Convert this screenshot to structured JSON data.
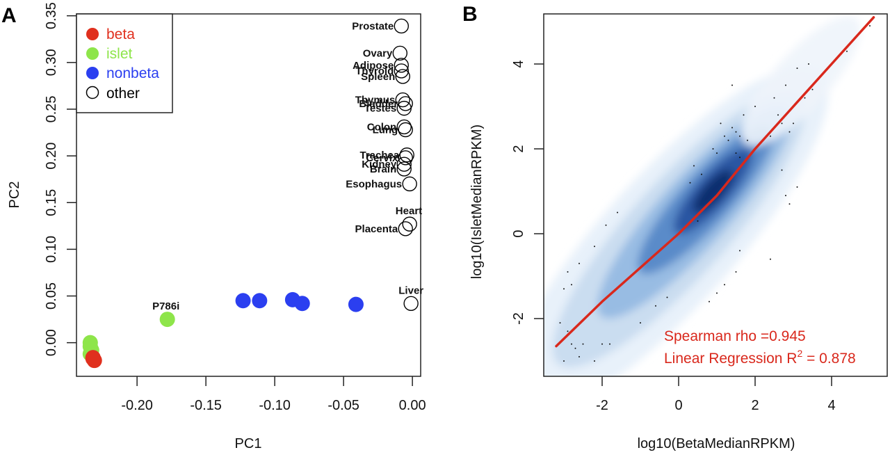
{
  "chart_data": [
    {
      "panel": "A",
      "type": "scatter",
      "title": "",
      "xlabel": "PC1",
      "ylabel": "PC2",
      "xlim": [
        -0.244,
        0.006
      ],
      "ylim": [
        -0.036,
        0.352
      ],
      "xticks": [
        "-0.20",
        "-0.15",
        "-0.10",
        "-0.05",
        "0.00"
      ],
      "xtick_values": [
        -0.2,
        -0.15,
        -0.1,
        -0.05,
        0.0
      ],
      "yticks": [
        "0.00",
        "0.05",
        "0.10",
        "0.15",
        "0.20",
        "0.25",
        "0.30",
        "0.35"
      ],
      "ytick_values": [
        0.0,
        0.05,
        0.1,
        0.15,
        0.2,
        0.25,
        0.3,
        0.35
      ],
      "grid": false,
      "legend": {
        "placement": "top-left",
        "entries": [
          {
            "label": "beta",
            "color": "#e0301e",
            "filled": true
          },
          {
            "label": "islet",
            "color": "#8ee54a",
            "filled": true
          },
          {
            "label": "nonbeta",
            "color": "#2b3ff0",
            "filled": true
          },
          {
            "label": "other",
            "color": "#000000",
            "filled": false
          }
        ]
      },
      "series": [
        {
          "name": "islet",
          "color": "#8ee54a",
          "points": [
            {
              "x": -0.234,
              "y": 0.0
            },
            {
              "x": -0.234,
              "y": -0.004
            },
            {
              "x": -0.233,
              "y": -0.008
            },
            {
              "x": -0.234,
              "y": -0.012
            },
            {
              "x": -0.178,
              "y": 0.025,
              "label": "P786i"
            }
          ]
        },
        {
          "name": "beta",
          "color": "#e0301e",
          "points": [
            {
              "x": -0.232,
              "y": -0.016
            },
            {
              "x": -0.231,
              "y": -0.019
            },
            {
              "x": -0.232,
              "y": -0.017
            }
          ]
        },
        {
          "name": "nonbeta",
          "color": "#2b3ff0",
          "points": [
            {
              "x": -0.123,
              "y": 0.045
            },
            {
              "x": -0.111,
              "y": 0.045
            },
            {
              "x": -0.087,
              "y": 0.046
            },
            {
              "x": -0.08,
              "y": 0.042
            },
            {
              "x": -0.041,
              "y": 0.041
            }
          ]
        },
        {
          "name": "other",
          "color": "#000000",
          "points": [
            {
              "x": -0.008,
              "y": 0.339,
              "label": "Prostate"
            },
            {
              "x": -0.009,
              "y": 0.31,
              "label": "Ovary"
            },
            {
              "x": -0.008,
              "y": 0.297,
              "label": "Adipose"
            },
            {
              "x": -0.008,
              "y": 0.291,
              "label": "Thyroid"
            },
            {
              "x": -0.007,
              "y": 0.285,
              "label": "Spleen"
            },
            {
              "x": -0.007,
              "y": 0.26,
              "label": "Thymus"
            },
            {
              "x": -0.005,
              "y": 0.256,
              "label": "Bladder"
            },
            {
              "x": -0.006,
              "y": 0.251,
              "label": "Testes"
            },
            {
              "x": -0.006,
              "y": 0.231,
              "label": "Colon"
            },
            {
              "x": -0.005,
              "y": 0.228,
              "label": "Lung"
            },
            {
              "x": -0.004,
              "y": 0.201,
              "label": "Trachea"
            },
            {
              "x": -0.005,
              "y": 0.198,
              "label": "Cervix"
            },
            {
              "x": -0.006,
              "y": 0.191,
              "label": "Kidney"
            },
            {
              "x": -0.006,
              "y": 0.186,
              "label": "Brain"
            },
            {
              "x": -0.002,
              "y": 0.17,
              "label": "Esophagus"
            },
            {
              "x": -0.002,
              "y": 0.127,
              "label": "Heart"
            },
            {
              "x": -0.005,
              "y": 0.122,
              "label": "Placenta"
            },
            {
              "x": -0.001,
              "y": 0.042,
              "label": "Liver"
            }
          ]
        }
      ]
    },
    {
      "panel": "B",
      "type": "heatmap",
      "subtype": "smoothScatter density with regression line",
      "title": "",
      "xlabel": "log10(BetaMedianRPKM)",
      "ylabel": "log10(IsletMedianRPKM)",
      "xlim": [
        -3.5,
        5.5
      ],
      "ylim": [
        -3.35,
        5.2
      ],
      "xticks": [
        "-2",
        "0",
        "2",
        "4"
      ],
      "xtick_values": [
        -2,
        0,
        2,
        4
      ],
      "yticks": [
        "-2",
        "0",
        "2",
        "4"
      ],
      "ytick_values": [
        -2,
        0,
        2,
        4
      ],
      "grid": false,
      "density_color": "#1a3f8f",
      "line_color": "#d9281c",
      "fit_line": [
        {
          "x": -3.2,
          "y": -2.65
        },
        {
          "x": -2.0,
          "y": -1.6
        },
        {
          "x": -1.0,
          "y": -0.8
        },
        {
          "x": 0.0,
          "y": 0.0
        },
        {
          "x": 1.0,
          "y": 0.9
        },
        {
          "x": 2.0,
          "y": 2.0
        },
        {
          "x": 3.0,
          "y": 3.0
        },
        {
          "x": 4.0,
          "y": 4.0
        },
        {
          "x": 5.1,
          "y": 5.1
        }
      ],
      "density_peak": {
        "x": 0.9,
        "y": 1.0
      },
      "outliers": [
        [
          5.0,
          4.9
        ],
        [
          3.4,
          4.0
        ],
        [
          4.4,
          4.3
        ],
        [
          3.1,
          3.9
        ],
        [
          2.8,
          3.5
        ],
        [
          3.5,
          3.4
        ],
        [
          3.3,
          3.2
        ],
        [
          2.5,
          3.2
        ],
        [
          1.4,
          3.5
        ],
        [
          2.0,
          3.0
        ],
        [
          1.7,
          2.8
        ],
        [
          1.1,
          2.6
        ],
        [
          1.4,
          2.5
        ],
        [
          1.5,
          2.4
        ],
        [
          1.2,
          2.3
        ],
        [
          1.6,
          2.3
        ],
        [
          1.3,
          2.2
        ],
        [
          1.8,
          2.2
        ],
        [
          0.9,
          2.0
        ],
        [
          1.0,
          1.9
        ],
        [
          1.5,
          1.9
        ],
        [
          1.6,
          1.8
        ],
        [
          0.4,
          1.6
        ],
        [
          0.6,
          1.4
        ],
        [
          0.3,
          1.2
        ],
        [
          2.6,
          2.8
        ],
        [
          2.7,
          2.6
        ],
        [
          3.0,
          2.6
        ],
        [
          2.9,
          2.4
        ],
        [
          2.4,
          2.3
        ],
        [
          2.7,
          1.5
        ],
        [
          2.8,
          0.9
        ],
        [
          2.9,
          0.7
        ],
        [
          3.1,
          1.1
        ],
        [
          1.6,
          -0.4
        ],
        [
          1.5,
          -0.9
        ],
        [
          1.2,
          -1.2
        ],
        [
          1.0,
          -1.4
        ],
        [
          0.8,
          -1.6
        ],
        [
          2.4,
          -0.6
        ],
        [
          -2.8,
          -2.6
        ],
        [
          -2.9,
          -2.3
        ],
        [
          -3.1,
          -2.1
        ],
        [
          -2.5,
          -2.6
        ],
        [
          -2.6,
          -2.9
        ],
        [
          -2.2,
          -3.0
        ],
        [
          -2.0,
          -2.6
        ],
        [
          -1.8,
          -2.6
        ],
        [
          -3.0,
          -1.3
        ],
        [
          -2.8,
          -1.2
        ],
        [
          -2.9,
          -0.9
        ],
        [
          -2.6,
          -0.7
        ],
        [
          -2.2,
          -0.3
        ],
        [
          -1.9,
          0.2
        ],
        [
          -1.6,
          0.5
        ],
        [
          -1.0,
          -2.1
        ],
        [
          -0.6,
          -1.7
        ],
        [
          -0.3,
          -1.5
        ],
        [
          0.5,
          0.3
        ],
        [
          -2.7,
          -2.7
        ],
        [
          -3.0,
          -3.0
        ]
      ],
      "annotations": [
        {
          "text": "Spearman rho =0.945",
          "placement": "bottom-right"
        },
        {
          "text_prefix": "Linear Regression R",
          "superscript": "2",
          "text_suffix": " = 0.878",
          "placement": "bottom-right"
        }
      ]
    }
  ],
  "panels": {
    "a_label": "A",
    "b_label": "B"
  }
}
